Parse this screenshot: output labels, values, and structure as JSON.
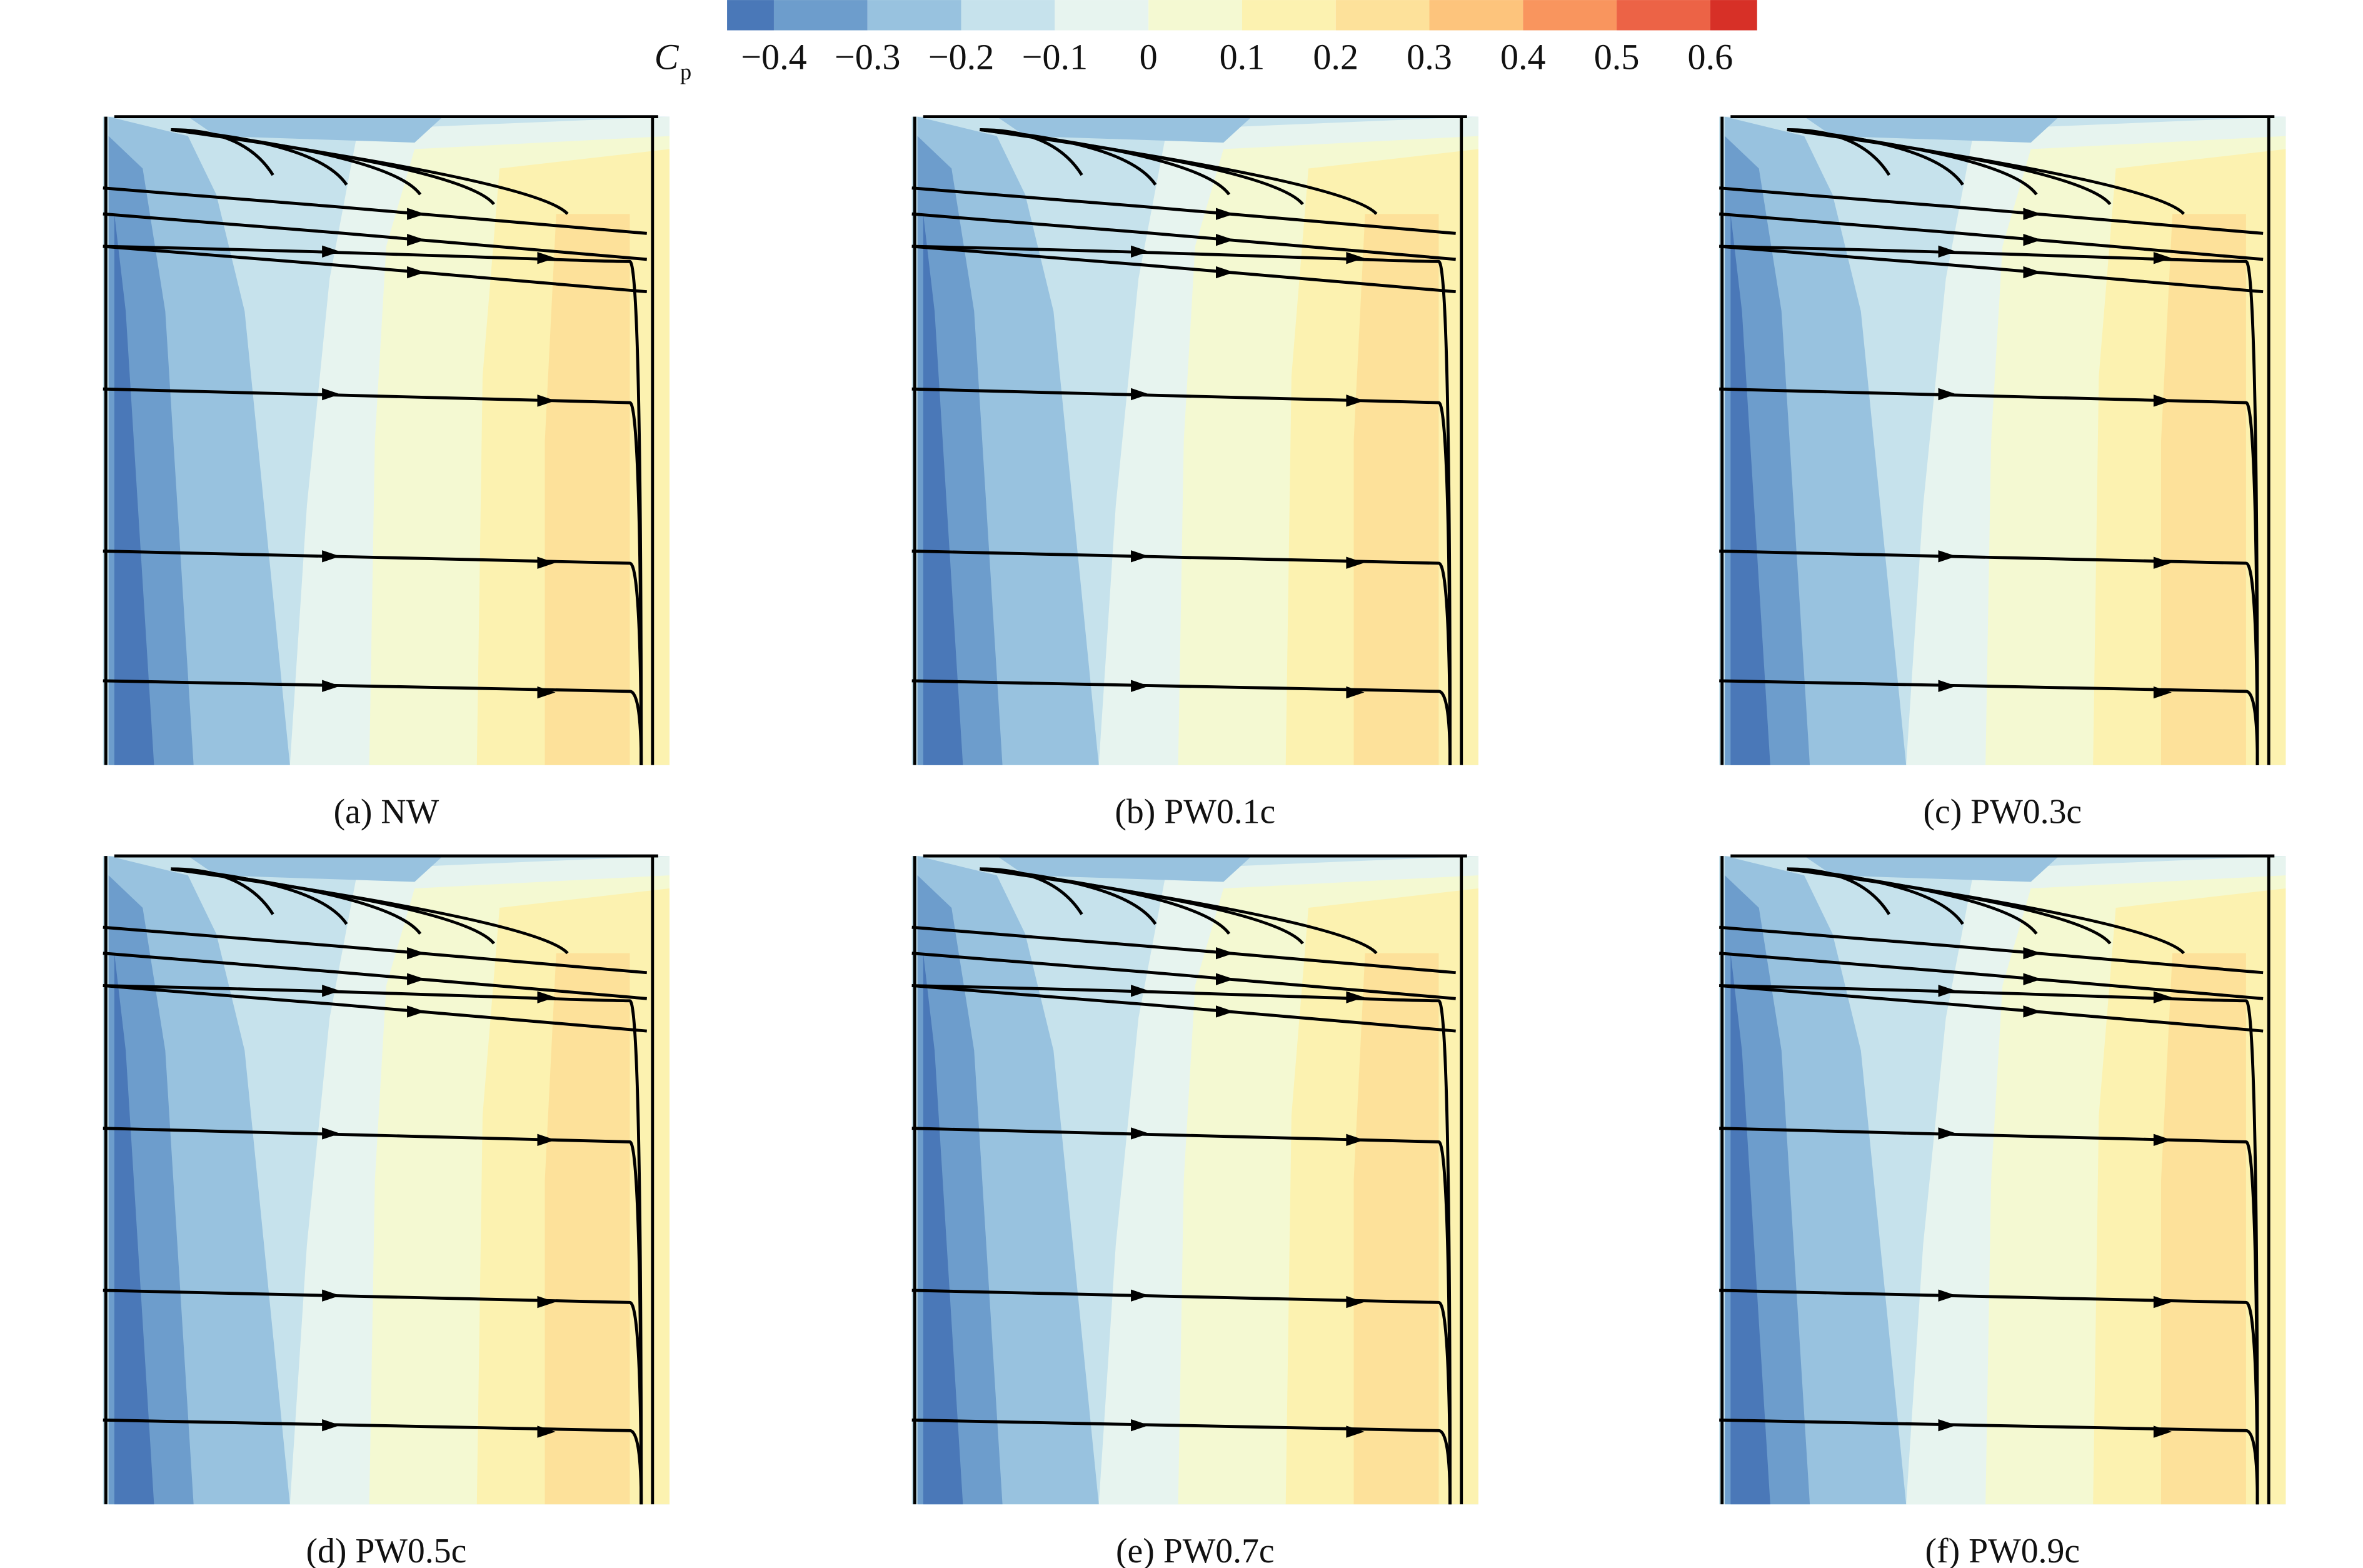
{
  "colorbar": {
    "symbol": "C",
    "subscript": "p",
    "boundaries": [
      -0.45,
      -0.4,
      -0.3,
      -0.2,
      -0.1,
      0,
      0.1,
      0.2,
      0.3,
      0.4,
      0.5,
      0.6,
      0.65
    ],
    "colors": [
      "#4a78b8",
      "#6d9dcc",
      "#98c2df",
      "#c6e2ec",
      "#e7f4ef",
      "#f4f9d2",
      "#fcf2b0",
      "#fde19a",
      "#fdc47c",
      "#f9955e",
      "#ec6346",
      "#d73027"
    ],
    "ticks": [
      {
        "value": -0.4,
        "label": "−0.4"
      },
      {
        "value": -0.3,
        "label": "−0.3"
      },
      {
        "value": -0.2,
        "label": "−0.2"
      },
      {
        "value": -0.1,
        "label": "−0.1"
      },
      0,
      0.1,
      0.2,
      0.3,
      0.4,
      0.5,
      0.6
    ]
  },
  "panels": [
    {
      "caption": "(a) NW"
    },
    {
      "caption": "(b) PW0.1c"
    },
    {
      "caption": "(c) PW0.3c"
    },
    {
      "caption": "(d) PW0.5c"
    },
    {
      "caption": "(e) PW0.7c"
    },
    {
      "caption": "(f) PW0.9c"
    }
  ]
}
